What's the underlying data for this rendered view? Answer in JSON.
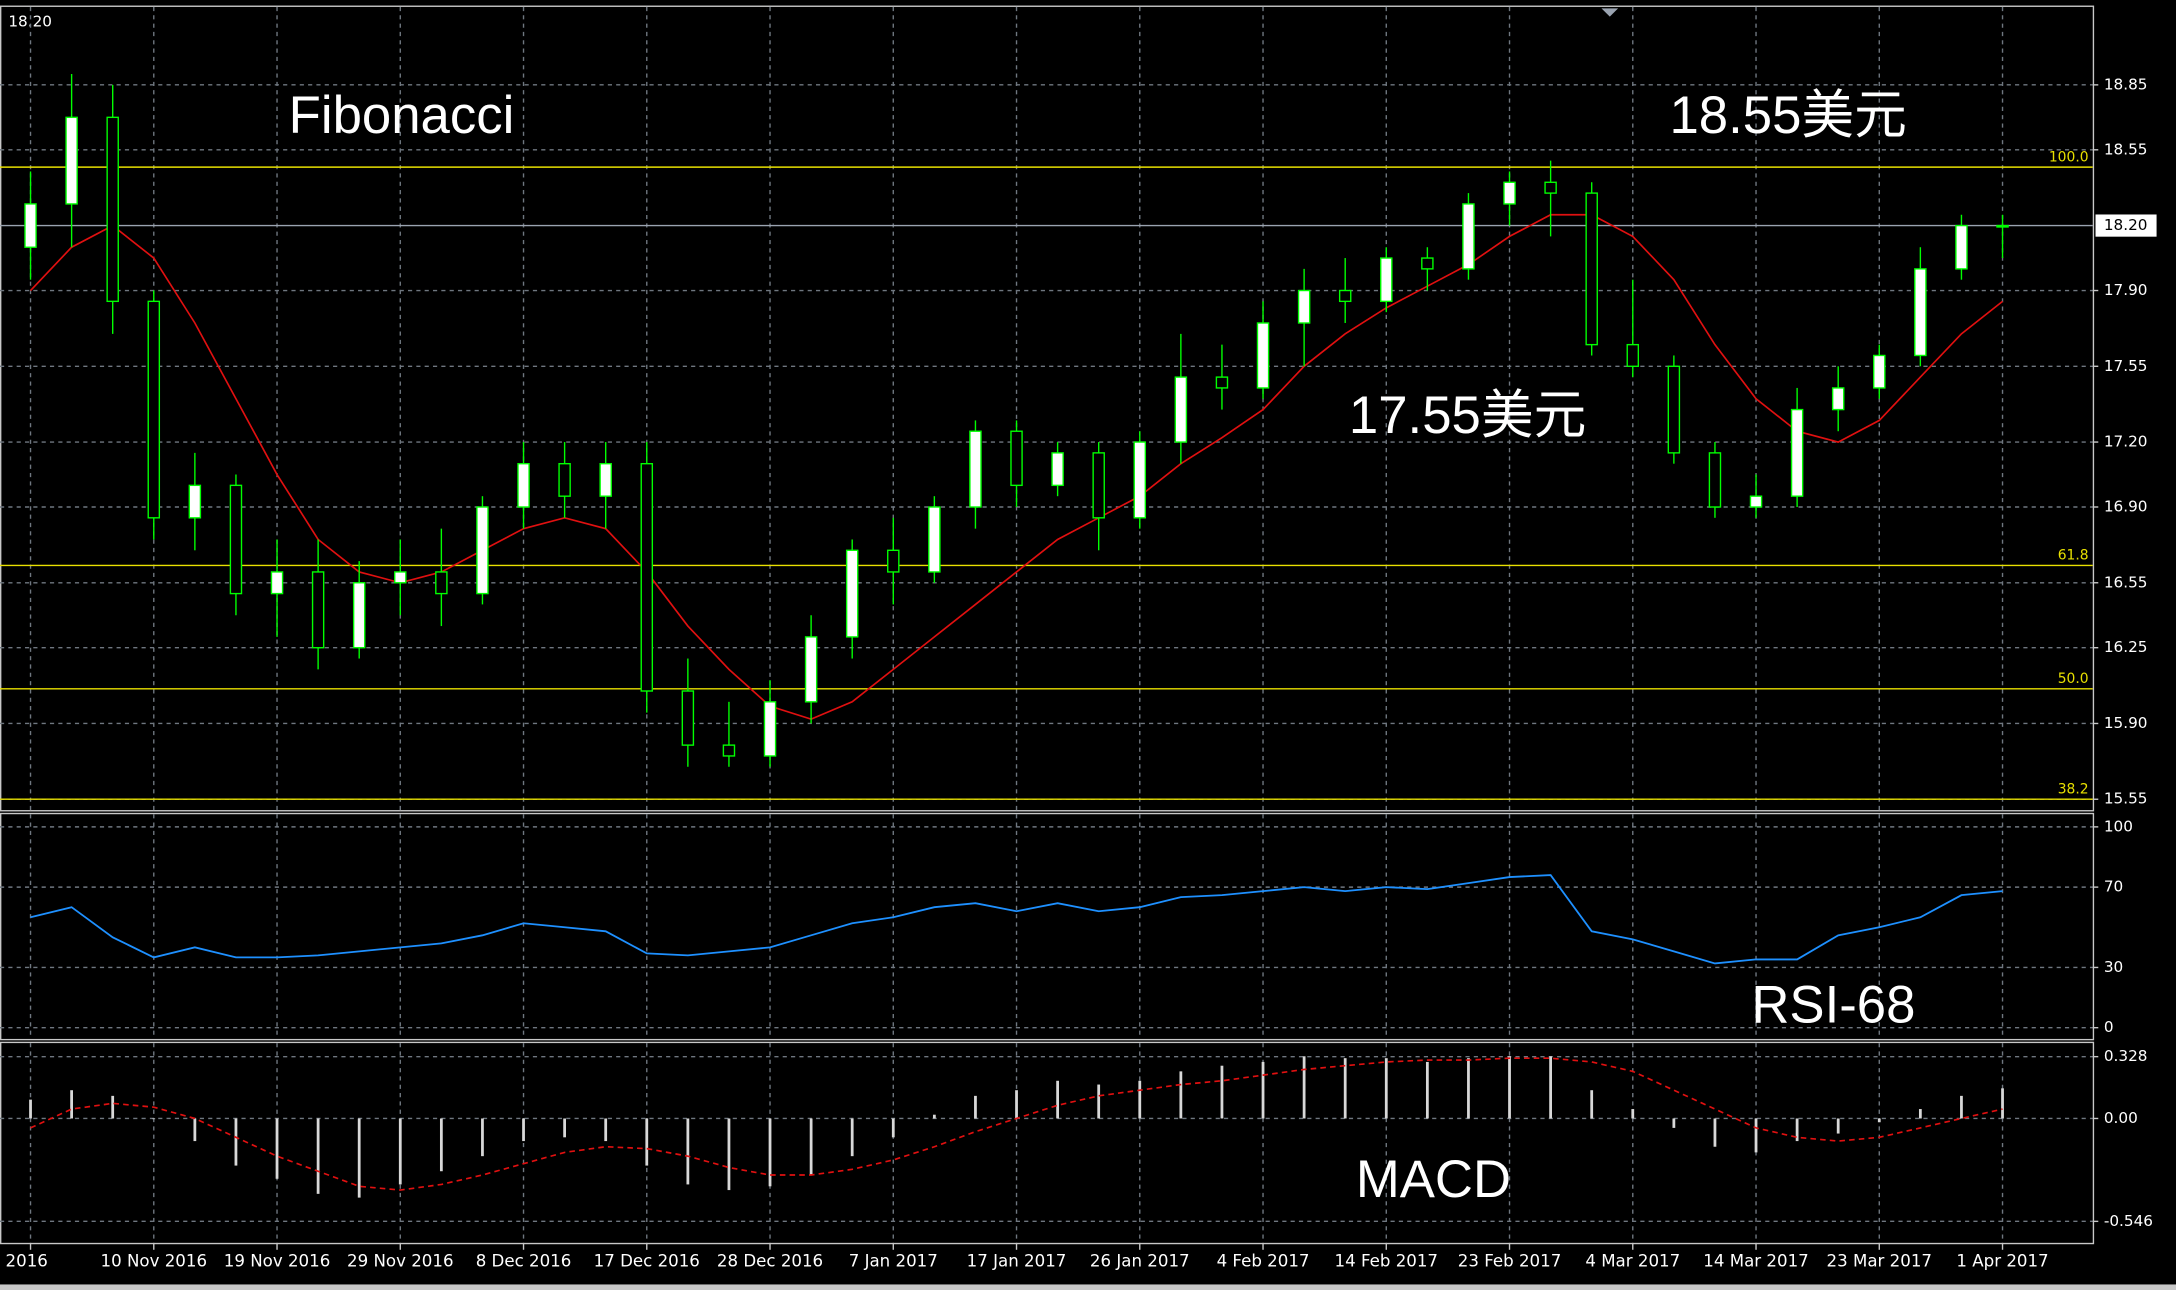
{
  "chart_data": [
    {
      "type": "candlestick",
      "corner_price": "18.20",
      "categories": [
        "2016",
        null,
        null,
        "10 Nov 2016",
        null,
        null,
        "19 Nov 2016",
        null,
        null,
        "29 Nov 2016",
        null,
        null,
        "8 Dec 2016",
        null,
        null,
        "17 Dec 2016",
        null,
        null,
        "28 Dec 2016",
        null,
        null,
        "7 Jan 2017",
        null,
        null,
        "17 Jan 2017",
        null,
        null,
        "26 Jan 2017",
        null,
        null,
        "4 Feb 2017",
        null,
        null,
        "14 Feb 2017",
        null,
        null,
        "23 Feb 2017",
        null,
        null,
        "4 Mar 2017",
        null,
        null,
        "14 Mar 2017",
        null,
        null,
        "23 Mar 2017",
        null,
        null,
        "1 Apr 2017"
      ],
      "open": [
        18.1,
        18.3,
        18.7,
        17.85,
        16.85,
        17.0,
        16.5,
        16.6,
        16.25,
        16.55,
        16.6,
        16.5,
        16.9,
        17.1,
        16.95,
        17.1,
        16.05,
        15.8,
        15.75,
        16.0,
        16.3,
        16.7,
        16.6,
        16.9,
        17.25,
        17.0,
        17.15,
        16.85,
        17.2,
        17.5,
        17.45,
        17.75,
        17.9,
        17.85,
        18.05,
        18.0,
        18.3,
        18.4,
        18.35,
        17.65,
        17.55,
        17.15,
        16.9,
        16.95,
        17.35,
        17.45,
        17.6,
        18.0,
        18.2
      ],
      "high": [
        18.45,
        18.9,
        18.85,
        17.9,
        17.15,
        17.05,
        16.75,
        16.75,
        16.65,
        16.75,
        16.8,
        16.95,
        17.2,
        17.2,
        17.2,
        17.2,
        16.2,
        16.0,
        16.1,
        16.4,
        16.75,
        16.85,
        16.95,
        17.3,
        17.3,
        17.2,
        17.2,
        17.25,
        17.7,
        17.65,
        17.85,
        18.0,
        18.05,
        18.1,
        18.1,
        18.35,
        18.45,
        18.5,
        18.4,
        17.95,
        17.6,
        17.2,
        17.05,
        17.45,
        17.55,
        17.65,
        18.1,
        18.25,
        18.25
      ],
      "low": [
        17.95,
        18.1,
        17.7,
        16.75,
        16.7,
        16.4,
        16.3,
        16.15,
        16.2,
        16.4,
        16.35,
        16.45,
        16.8,
        16.85,
        16.8,
        15.95,
        15.7,
        15.7,
        15.7,
        15.9,
        16.2,
        16.45,
        16.55,
        16.8,
        16.9,
        16.95,
        16.7,
        16.8,
        17.1,
        17.35,
        17.4,
        17.55,
        17.75,
        17.8,
        17.9,
        17.95,
        18.2,
        18.15,
        17.6,
        17.5,
        17.1,
        16.85,
        16.85,
        16.9,
        17.25,
        17.4,
        17.55,
        17.95,
        18.05
      ],
      "close": [
        18.3,
        18.7,
        17.85,
        16.85,
        17.0,
        16.5,
        16.6,
        16.25,
        16.55,
        16.6,
        16.5,
        16.9,
        17.1,
        16.95,
        17.1,
        16.05,
        15.8,
        15.75,
        16.0,
        16.3,
        16.7,
        16.6,
        16.9,
        17.25,
        17.0,
        17.15,
        16.85,
        17.2,
        17.5,
        17.45,
        17.75,
        17.9,
        17.85,
        18.05,
        18.0,
        18.3,
        18.4,
        18.35,
        17.65,
        17.55,
        17.15,
        16.9,
        16.95,
        17.35,
        17.45,
        17.6,
        18.0,
        18.2,
        18.2
      ],
      "up_color": "#ffffff",
      "down_color": "#000000",
      "wick_color": "#00ff00",
      "ma": {
        "color": "#e01010",
        "values": [
          17.9,
          18.1,
          18.2,
          18.05,
          17.75,
          17.4,
          17.05,
          16.75,
          16.6,
          16.55,
          16.6,
          16.7,
          16.8,
          16.85,
          16.8,
          16.6,
          16.35,
          16.15,
          15.98,
          15.92,
          16.0,
          16.15,
          16.3,
          16.45,
          16.6,
          16.75,
          16.85,
          16.95,
          17.1,
          17.22,
          17.35,
          17.55,
          17.7,
          17.82,
          17.92,
          18.02,
          18.15,
          18.25,
          18.25,
          18.15,
          17.95,
          17.65,
          17.4,
          17.25,
          17.2,
          17.3,
          17.5,
          17.7,
          17.85
        ]
      },
      "fib_color": "#e8e000",
      "fib_levels": [
        {
          "value": 18.47,
          "label": "100.0"
        },
        {
          "value": 16.63,
          "label": "61.8"
        },
        {
          "value": 16.06,
          "label": "50.0"
        },
        {
          "value": 15.55,
          "label": "38.2"
        }
      ],
      "current_price": {
        "value": 18.2,
        "label": "18.20"
      },
      "ylim": [
        15.5,
        19.21
      ],
      "yticks": [
        {
          "value": 15.55,
          "label": "15.55"
        },
        {
          "value": 15.9,
          "label": "15.90"
        },
        {
          "value": 16.25,
          "label": "16.25"
        },
        16.55,
        {
          "value": 16.9,
          "label": "16.90"
        },
        {
          "value": 17.2,
          "label": "17.20"
        },
        17.55,
        {
          "value": 17.9,
          "label": "17.90"
        },
        {
          "value": 18.55,
          "label": "18.55"
        },
        18.85
      ],
      "annotations": [
        "Fibonacci",
        "18.55美元",
        "17.55美元"
      ]
    },
    {
      "type": "line",
      "color": "#1e90ff",
      "values": [
        55,
        60,
        45,
        35,
        40,
        35,
        35,
        36,
        38,
        40,
        42,
        46,
        52,
        50,
        48,
        37,
        36,
        38,
        40,
        46,
        52,
        55,
        60,
        62,
        58,
        62,
        58,
        60,
        65,
        66,
        68,
        70,
        68,
        70,
        69,
        72,
        75,
        76,
        48,
        44,
        38,
        32,
        34,
        34,
        46,
        50,
        55,
        66,
        68
      ],
      "ylim": [
        -5.6,
        106.3
      ],
      "yticks": [
        0,
        30,
        70,
        100
      ],
      "annotations": [
        "RSI-68"
      ]
    },
    {
      "type": "bar",
      "color": "#d8d8d8",
      "values": [
        0.1,
        0.15,
        0.12,
        0.0,
        -0.12,
        -0.25,
        -0.32,
        -0.4,
        -0.42,
        -0.35,
        -0.28,
        -0.2,
        -0.12,
        -0.1,
        -0.12,
        -0.25,
        -0.35,
        -0.38,
        -0.36,
        -0.3,
        -0.2,
        -0.1,
        0.02,
        0.12,
        0.15,
        0.2,
        0.18,
        0.2,
        0.25,
        0.28,
        0.3,
        0.33,
        0.32,
        0.32,
        0.3,
        0.32,
        0.33,
        0.33,
        0.15,
        0.05,
        -0.05,
        -0.15,
        -0.18,
        -0.12,
        -0.08,
        -0.02,
        0.05,
        0.12,
        0.16
      ],
      "signal": {
        "color": "#e01010",
        "values": [
          -0.05,
          0.05,
          0.08,
          0.06,
          0.0,
          -0.1,
          -0.2,
          -0.28,
          -0.36,
          -0.38,
          -0.35,
          -0.3,
          -0.24,
          -0.18,
          -0.15,
          -0.16,
          -0.2,
          -0.26,
          -0.3,
          -0.3,
          -0.27,
          -0.22,
          -0.15,
          -0.07,
          0.0,
          0.07,
          0.12,
          0.15,
          0.18,
          0.2,
          0.23,
          0.26,
          0.28,
          0.3,
          0.31,
          0.31,
          0.32,
          0.32,
          0.3,
          0.25,
          0.15,
          0.05,
          -0.05,
          -0.1,
          -0.12,
          -0.1,
          -0.05,
          0.0,
          0.05
        ]
      },
      "ylim": [
        -0.66,
        0.4
      ],
      "yticks": [
        -0.546,
        {
          "value": 0,
          "label": "0.00"
        },
        0.328
      ],
      "annotations": [
        "MACD"
      ]
    }
  ]
}
